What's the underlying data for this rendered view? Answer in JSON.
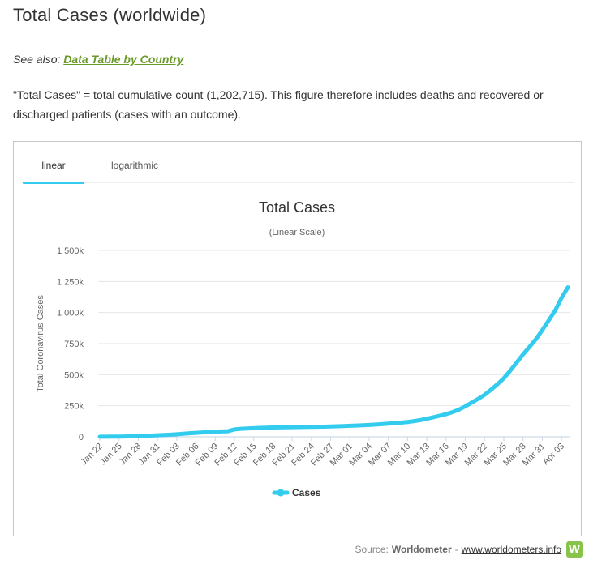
{
  "page": {
    "title": "Total Cases (worldwide)",
    "see_also_prefix": "See also: ",
    "see_also_link": "Data Table by Country",
    "description": "\"Total Cases\" = total cumulative count (1,202,715). This figure therefore includes deaths and recovered or discharged patients (cases with an outcome)."
  },
  "tabs": [
    {
      "label": "linear",
      "active": true
    },
    {
      "label": "logarithmic",
      "active": false
    }
  ],
  "source": {
    "prefix": "Source: ",
    "name": "Worldometer",
    "separator": " - ",
    "link": "www.worldometers.info",
    "logo_letter": "W"
  },
  "colors": {
    "series": "#33ccee",
    "link": "#6a9a2a",
    "logo": "#88c34a"
  },
  "chart_data": {
    "type": "line",
    "title": "Total Cases",
    "subtitle": "(Linear Scale)",
    "ylabel": "Total Coronavirus Cases",
    "xlabel": "",
    "ylim": [
      0,
      1500000
    ],
    "yticks": [
      0,
      250000,
      500000,
      750000,
      1000000,
      1250000,
      1500000
    ],
    "ytick_labels": [
      "0",
      "250k",
      "500k",
      "750k",
      "1 000k",
      "1 250k",
      "1 500k"
    ],
    "xtick_labels": [
      "Jan 22",
      "Jan 25",
      "Jan 28",
      "Jan 31",
      "Feb 03",
      "Feb 06",
      "Feb 09",
      "Feb 12",
      "Feb 15",
      "Feb 18",
      "Feb 21",
      "Feb 24",
      "Feb 27",
      "Mar 01",
      "Mar 04",
      "Mar 07",
      "Mar 10",
      "Mar 13",
      "Mar 16",
      "Mar 19",
      "Mar 22",
      "Mar 25",
      "Mar 28",
      "Mar 31",
      "Apr 03"
    ],
    "grid": true,
    "legend_position": "bottom-center",
    "categories": [
      "Jan 22",
      "Jan 23",
      "Jan 24",
      "Jan 25",
      "Jan 26",
      "Jan 27",
      "Jan 28",
      "Jan 29",
      "Jan 30",
      "Jan 31",
      "Feb 01",
      "Feb 02",
      "Feb 03",
      "Feb 04",
      "Feb 05",
      "Feb 06",
      "Feb 07",
      "Feb 08",
      "Feb 09",
      "Feb 10",
      "Feb 11",
      "Feb 12",
      "Feb 13",
      "Feb 14",
      "Feb 15",
      "Feb 16",
      "Feb 17",
      "Feb 18",
      "Feb 19",
      "Feb 20",
      "Feb 21",
      "Feb 22",
      "Feb 23",
      "Feb 24",
      "Feb 25",
      "Feb 26",
      "Feb 27",
      "Feb 28",
      "Feb 29",
      "Mar 01",
      "Mar 02",
      "Mar 03",
      "Mar 04",
      "Mar 05",
      "Mar 06",
      "Mar 07",
      "Mar 08",
      "Mar 09",
      "Mar 10",
      "Mar 11",
      "Mar 12",
      "Mar 13",
      "Mar 14",
      "Mar 15",
      "Mar 16",
      "Mar 17",
      "Mar 18",
      "Mar 19",
      "Mar 20",
      "Mar 21",
      "Mar 22",
      "Mar 23",
      "Mar 24",
      "Mar 25",
      "Mar 26",
      "Mar 27",
      "Mar 28",
      "Mar 29",
      "Mar 30",
      "Mar 31",
      "Apr 01",
      "Apr 02",
      "Apr 03",
      "Apr 04"
    ],
    "series": [
      {
        "name": "Cases",
        "values": [
          580,
          845,
          1317,
          2015,
          2800,
          4581,
          6058,
          7813,
          9823,
          11950,
          14553,
          17391,
          20630,
          24545,
          28266,
          31439,
          34876,
          37552,
          40553,
          43099,
          45134,
          59287,
          64438,
          67100,
          69197,
          71329,
          73332,
          75184,
          75700,
          76677,
          77673,
          78651,
          79205,
          80087,
          80828,
          81820,
          83112,
          84615,
          86604,
          88585,
          90443,
          93016,
          95314,
          98425,
          102050,
          106099,
          109991,
          114381,
          118948,
          126214,
          134509,
          145483,
          156653,
          169593,
          182490,
          198234,
          218822,
          244933,
          275597,
          305036,
          337489,
          378830,
          422574,
          471035,
          531865,
          596366,
          663127,
          723390,
          784794,
          858361,
          935957,
          1015403,
          1116643,
          1202715
        ]
      }
    ]
  }
}
